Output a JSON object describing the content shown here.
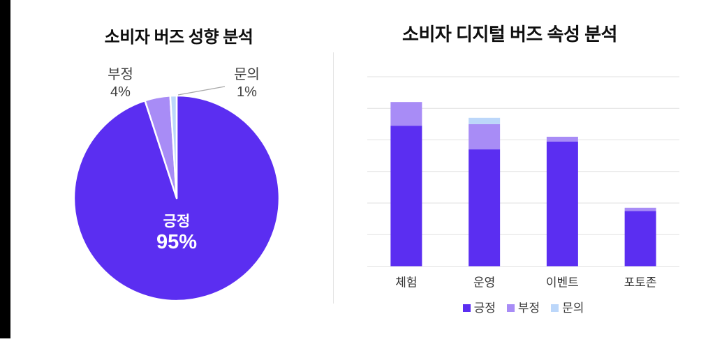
{
  "chart_data": [
    {
      "type": "pie",
      "title": "소비자 버즈 성향 분석",
      "start_angle": "top",
      "direction": "clockwise",
      "slices": [
        {
          "key": "positive",
          "label": "긍정",
          "value": 95,
          "pct_label": "95%",
          "color": "#5b2ef1",
          "label_position": "inside-center"
        },
        {
          "key": "negative",
          "label": "부정",
          "value": 4,
          "pct_label": "4%",
          "color": "#a88cf6",
          "label_position": "outside-top-left"
        },
        {
          "key": "inquiry",
          "label": "문의",
          "value": 1,
          "pct_label": "1%",
          "color": "#bcd7fa",
          "label_position": "outside-top-right-with-leader-line"
        }
      ]
    },
    {
      "type": "bar",
      "stacked": true,
      "title": "소비자 디지털 버즈 속성 분석",
      "categories": [
        "체험",
        "운영",
        "이벤트",
        "포토존"
      ],
      "series": [
        {
          "key": "positive",
          "name": "긍정",
          "color": "#5b2ef1",
          "values": [
            445,
            370,
            395,
            175
          ]
        },
        {
          "key": "negative",
          "name": "부정",
          "color": "#a88cf6",
          "values": [
            75,
            80,
            15,
            10
          ]
        },
        {
          "key": "inquiry",
          "name": "문의",
          "color": "#bcd7fa",
          "values": [
            0,
            20,
            0,
            0
          ]
        }
      ],
      "ylim": [
        0,
        600
      ],
      "grid_step": 100,
      "y_axis_tick_labels_visible": false,
      "gridlines": true,
      "legend_position": "bottom",
      "note": "no numeric axis labels shown; values estimated from gridlines"
    }
  ]
}
